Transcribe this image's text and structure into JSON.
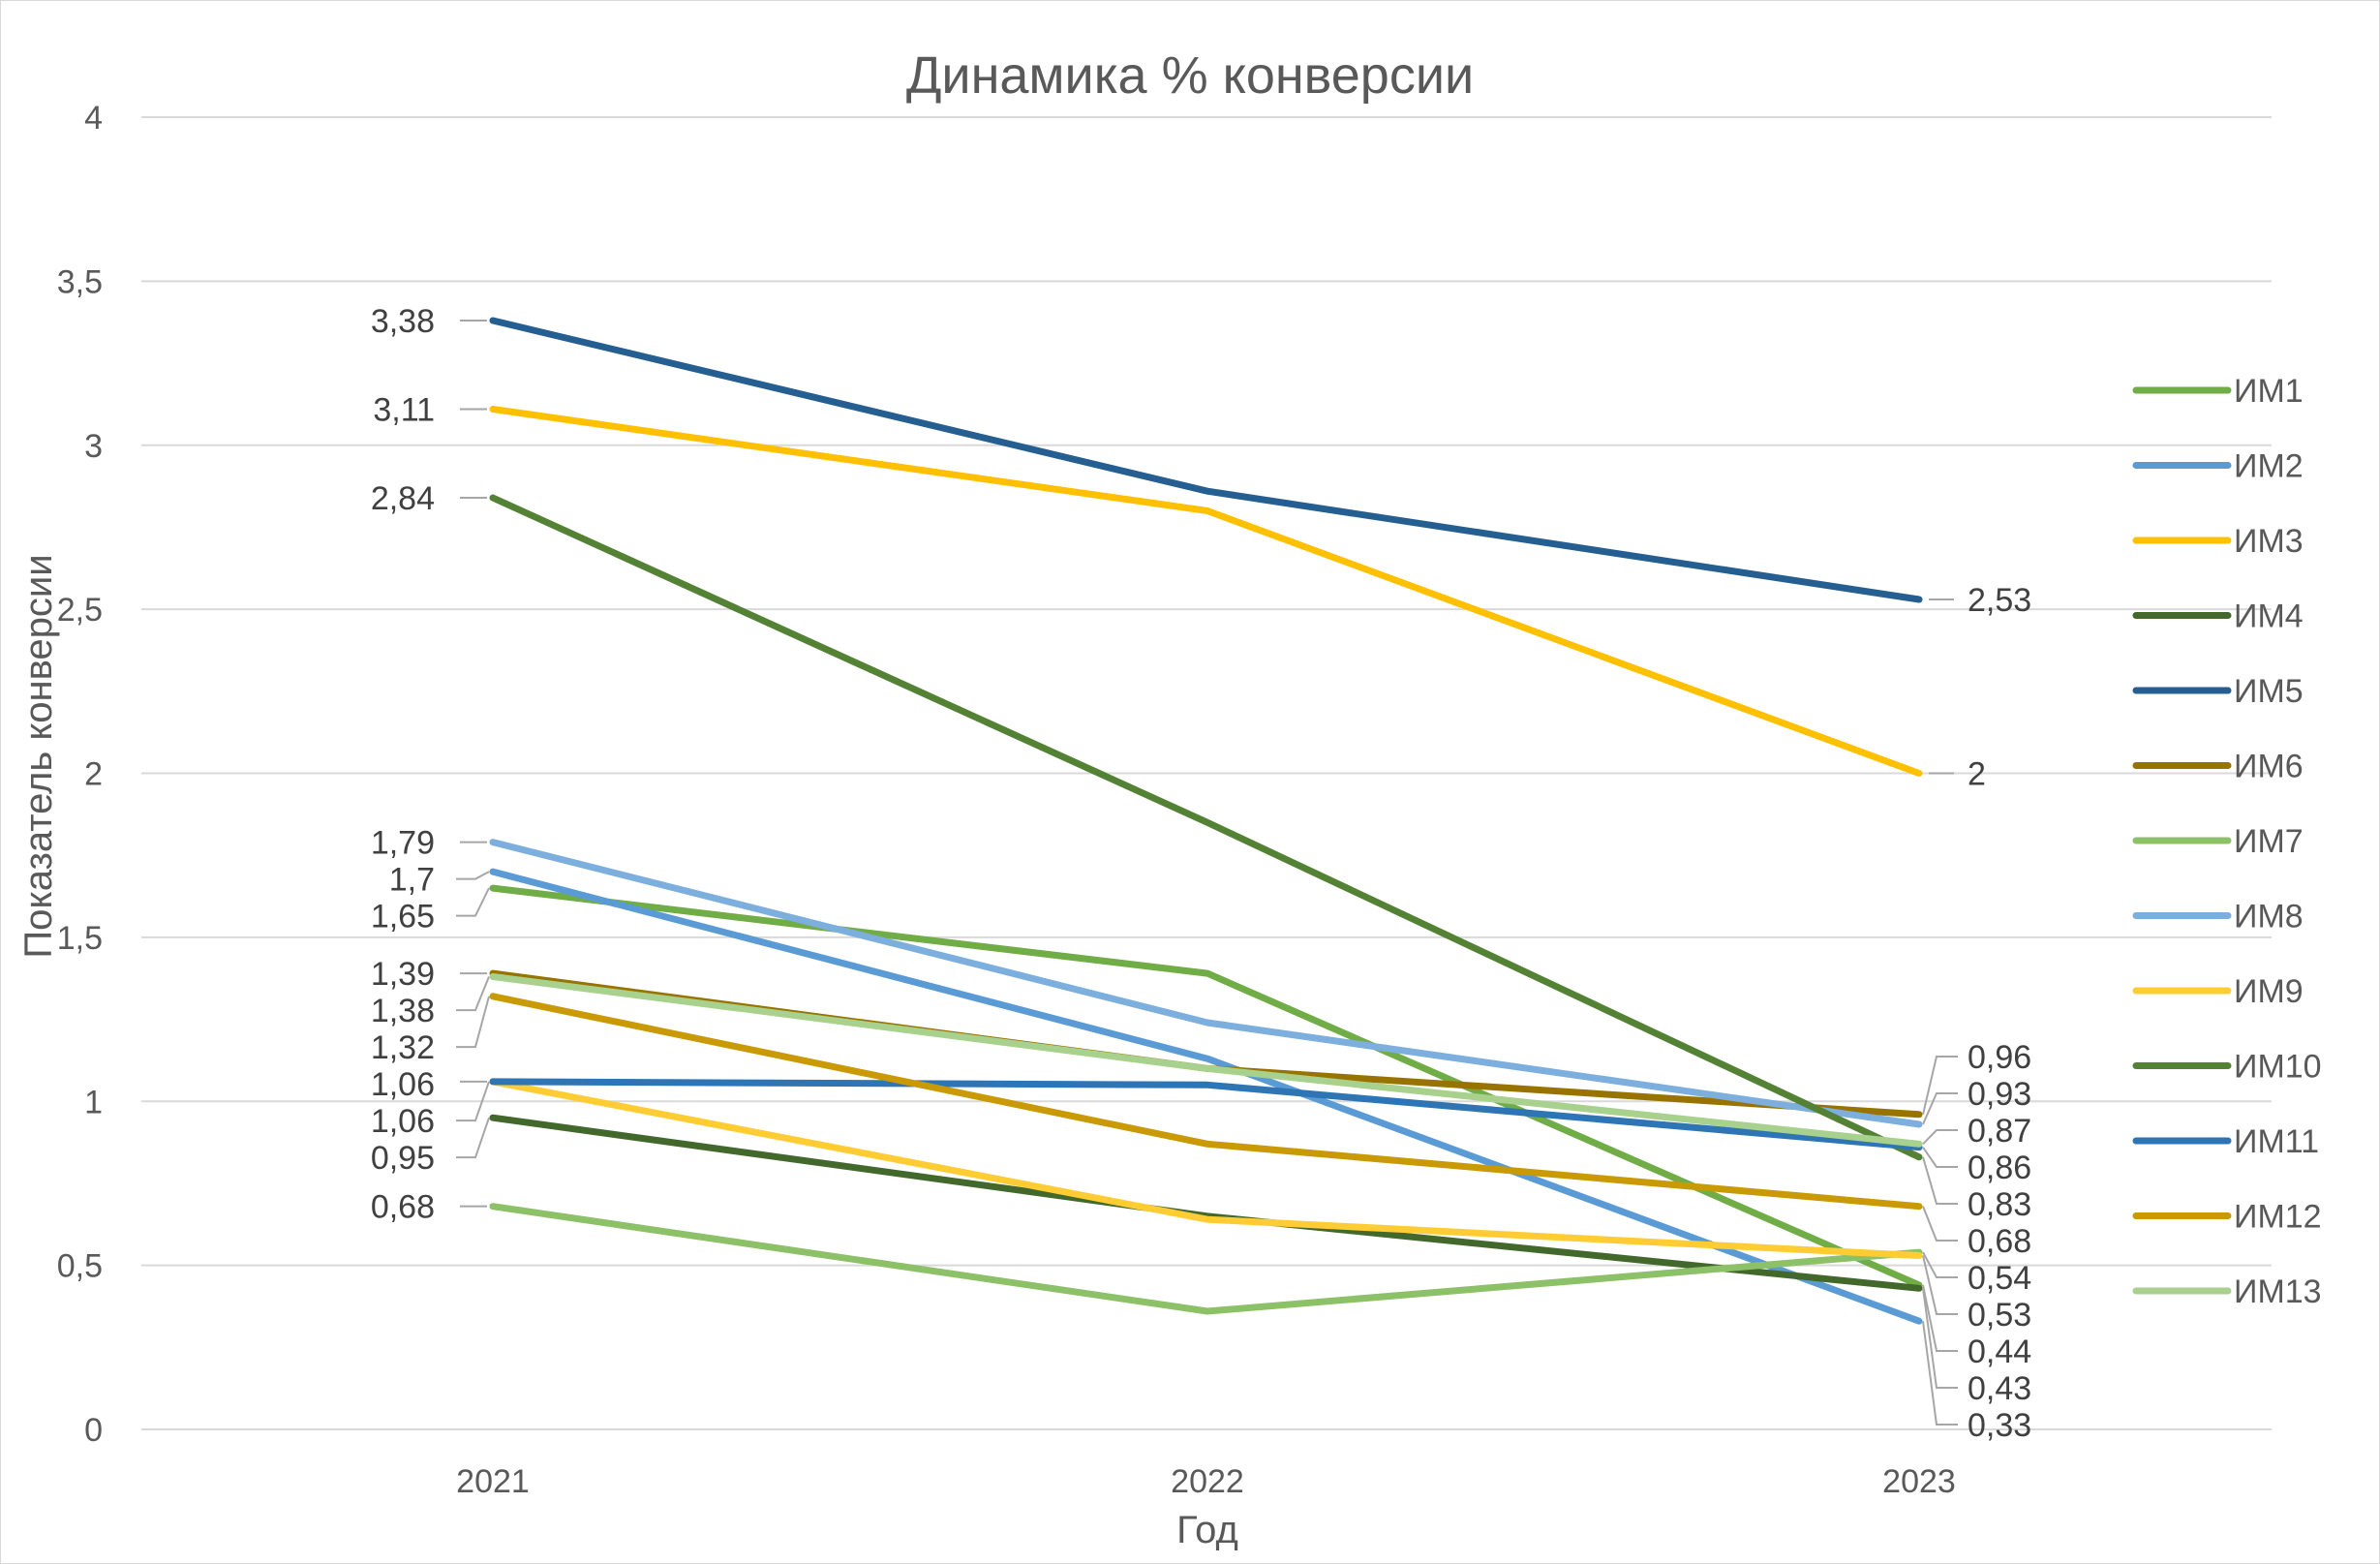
{
  "chart_data": {
    "type": "line",
    "title": "Динамика % конверсии",
    "xlabel": "Год",
    "ylabel": "Показатель конверсии",
    "categories": [
      "2021",
      "2022",
      "2023"
    ],
    "ylim": [
      0,
      4
    ],
    "yticks": [
      "0",
      "0,5",
      "1",
      "1,5",
      "2",
      "2,5",
      "3",
      "3,5",
      "4"
    ],
    "grid": true,
    "legend_position": "right",
    "series": [
      {
        "name": "ИМ1",
        "color": "#70ad47",
        "values": [
          1.65,
          1.39,
          0.44
        ],
        "labels": [
          "1,65",
          "",
          "0,44"
        ]
      },
      {
        "name": "ИМ2",
        "color": "#5b9bd5",
        "values": [
          1.7,
          1.13,
          0.33
        ],
        "labels": [
          "1,7",
          "",
          "0,33"
        ]
      },
      {
        "name": "ИМ3",
        "color": "#ffc000",
        "values": [
          3.11,
          2.8,
          2.0
        ],
        "labels": [
          "3,11",
          "",
          "2"
        ]
      },
      {
        "name": "ИМ4",
        "color": "#43682b",
        "values": [
          0.95,
          0.65,
          0.43
        ],
        "labels": [
          "0,95",
          "",
          "0,43"
        ]
      },
      {
        "name": "ИМ5",
        "color": "#255e91",
        "values": [
          3.38,
          2.86,
          2.53
        ],
        "labels": [
          "3,38",
          "",
          "2,53"
        ]
      },
      {
        "name": "ИМ6",
        "color": "#997300",
        "values": [
          1.39,
          1.1,
          0.96
        ],
        "labels": [
          "1,39",
          "",
          "0,96"
        ]
      },
      {
        "name": "ИМ7",
        "color": "#8cc168",
        "values": [
          0.68,
          0.36,
          0.54
        ],
        "labels": [
          "0,68",
          "",
          "0,54"
        ]
      },
      {
        "name": "ИМ8",
        "color": "#7cafdd",
        "values": [
          1.79,
          1.24,
          0.93
        ],
        "labels": [
          "1,79",
          "",
          "0,93"
        ]
      },
      {
        "name": "ИМ9",
        "color": "#ffcd33",
        "values": [
          1.06,
          0.64,
          0.53
        ],
        "labels": [
          "1,06",
          "",
          "0,53"
        ]
      },
      {
        "name": "ИМ10",
        "color": "#548235",
        "values": [
          2.84,
          1.85,
          0.83
        ],
        "labels": [
          "2,84",
          "",
          "0,83"
        ]
      },
      {
        "name": "ИМ11",
        "color": "#2e75b6",
        "values": [
          1.06,
          1.05,
          0.86
        ],
        "labels": [
          "1,06",
          "",
          "0,86"
        ]
      },
      {
        "name": "ИМ12",
        "color": "#c99a06",
        "values": [
          1.32,
          0.87,
          0.68
        ],
        "labels": [
          "1,32",
          "",
          "0,68"
        ]
      },
      {
        "name": "ИМ13",
        "color": "#a9d18e",
        "values": [
          1.38,
          1.1,
          0.87
        ],
        "labels": [
          "1,38",
          "",
          "0,87"
        ]
      }
    ]
  }
}
